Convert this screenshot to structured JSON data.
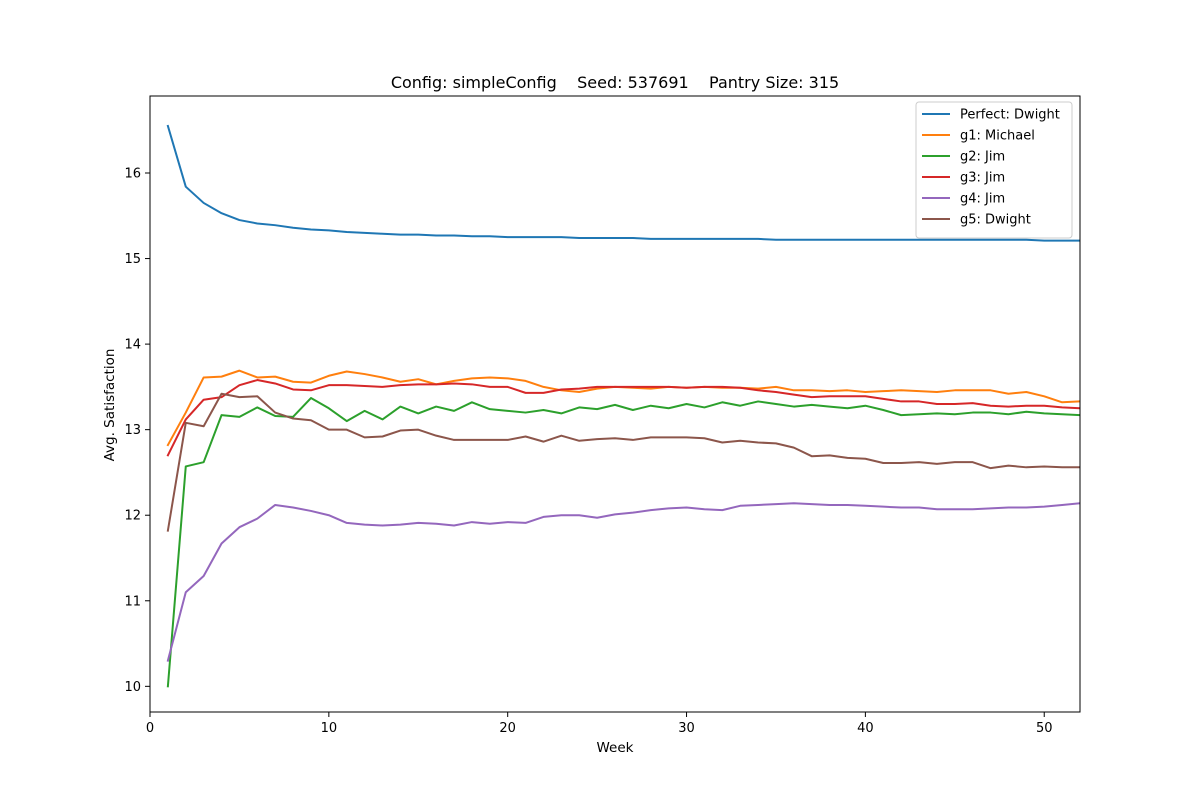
{
  "chart_data": {
    "type": "line",
    "title": "Config: simpleConfig    Seed: 537691    Pantry Size: 315",
    "xlabel": "Week",
    "ylabel": "Avg. Satisfaction",
    "xlim": [
      0,
      52
    ],
    "ylim": [
      9.7,
      16.9
    ],
    "xticks": [
      0,
      10,
      20,
      30,
      40,
      50
    ],
    "yticks": [
      10,
      11,
      12,
      13,
      14,
      15,
      16
    ],
    "grid": false,
    "legend_position": "top-right",
    "x": [
      1,
      2,
      3,
      4,
      5,
      6,
      7,
      8,
      9,
      10,
      11,
      12,
      13,
      14,
      15,
      16,
      17,
      18,
      19,
      20,
      21,
      22,
      23,
      24,
      25,
      26,
      27,
      28,
      29,
      30,
      31,
      32,
      33,
      34,
      35,
      36,
      37,
      38,
      39,
      40,
      41,
      42,
      43,
      44,
      45,
      46,
      47,
      48,
      49,
      50,
      51,
      52
    ],
    "series": [
      {
        "name": "Perfect: Dwight",
        "color": "#1f77b4",
        "values": [
          16.55,
          15.84,
          15.65,
          15.53,
          15.45,
          15.41,
          15.39,
          15.36,
          15.34,
          15.33,
          15.31,
          15.3,
          15.29,
          15.28,
          15.28,
          15.27,
          15.27,
          15.26,
          15.26,
          15.25,
          15.25,
          15.25,
          15.25,
          15.24,
          15.24,
          15.24,
          15.24,
          15.23,
          15.23,
          15.23,
          15.23,
          15.23,
          15.23,
          15.23,
          15.22,
          15.22,
          15.22,
          15.22,
          15.22,
          15.22,
          15.22,
          15.22,
          15.22,
          15.22,
          15.22,
          15.22,
          15.22,
          15.22,
          15.22,
          15.21,
          15.21,
          15.21
        ]
      },
      {
        "name": "g1: Michael",
        "color": "#ff7f0e",
        "values": [
          12.82,
          13.2,
          13.61,
          13.62,
          13.69,
          13.61,
          13.62,
          13.56,
          13.55,
          13.63,
          13.68,
          13.65,
          13.61,
          13.56,
          13.59,
          13.53,
          13.57,
          13.6,
          13.61,
          13.6,
          13.57,
          13.5,
          13.46,
          13.44,
          13.48,
          13.5,
          13.49,
          13.48,
          13.5,
          13.49,
          13.5,
          13.49,
          13.49,
          13.48,
          13.5,
          13.46,
          13.46,
          13.45,
          13.46,
          13.44,
          13.45,
          13.46,
          13.45,
          13.44,
          13.46,
          13.46,
          13.46,
          13.42,
          13.44,
          13.39,
          13.32,
          13.33
        ]
      },
      {
        "name": "g2: Jim",
        "color": "#2ca02c",
        "values": [
          10.0,
          12.57,
          12.62,
          13.17,
          13.15,
          13.26,
          13.16,
          13.15,
          13.37,
          13.25,
          13.1,
          13.22,
          13.12,
          13.27,
          13.19,
          13.27,
          13.22,
          13.32,
          13.24,
          13.22,
          13.2,
          13.23,
          13.19,
          13.26,
          13.24,
          13.29,
          13.23,
          13.28,
          13.25,
          13.3,
          13.26,
          13.32,
          13.28,
          13.33,
          13.3,
          13.27,
          13.29,
          13.27,
          13.25,
          13.28,
          13.23,
          13.17,
          13.18,
          13.19,
          13.18,
          13.2,
          13.2,
          13.18,
          13.21,
          13.19,
          13.18,
          13.17
        ]
      },
      {
        "name": "g3: Jim",
        "color": "#d62728",
        "values": [
          12.7,
          13.12,
          13.35,
          13.38,
          13.52,
          13.58,
          13.54,
          13.47,
          13.46,
          13.52,
          13.52,
          13.51,
          13.5,
          13.52,
          13.53,
          13.53,
          13.54,
          13.53,
          13.5,
          13.5,
          13.43,
          13.43,
          13.47,
          13.48,
          13.5,
          13.5,
          13.5,
          13.5,
          13.5,
          13.49,
          13.5,
          13.5,
          13.49,
          13.46,
          13.44,
          13.41,
          13.38,
          13.39,
          13.39,
          13.39,
          13.36,
          13.33,
          13.33,
          13.3,
          13.3,
          13.31,
          13.28,
          13.27,
          13.28,
          13.28,
          13.26,
          13.25
        ]
      },
      {
        "name": "g4: Jim",
        "color": "#9467bd",
        "values": [
          10.3,
          11.1,
          11.29,
          11.67,
          11.86,
          11.96,
          12.12,
          12.09,
          12.05,
          12.0,
          11.91,
          11.89,
          11.88,
          11.89,
          11.91,
          11.9,
          11.88,
          11.92,
          11.9,
          11.92,
          11.91,
          11.98,
          12.0,
          12.0,
          11.97,
          12.01,
          12.03,
          12.06,
          12.08,
          12.09,
          12.07,
          12.06,
          12.11,
          12.12,
          12.13,
          12.14,
          12.13,
          12.12,
          12.12,
          12.11,
          12.1,
          12.09,
          12.09,
          12.07,
          12.07,
          12.07,
          12.08,
          12.09,
          12.09,
          12.1,
          12.12,
          12.14
        ]
      },
      {
        "name": "g5: Dwight",
        "color": "#8c564b",
        "values": [
          11.82,
          13.08,
          13.04,
          13.42,
          13.38,
          13.39,
          13.2,
          13.13,
          13.11,
          13.0,
          13.0,
          12.91,
          12.92,
          12.99,
          13.0,
          12.93,
          12.88,
          12.88,
          12.88,
          12.88,
          12.92,
          12.86,
          12.93,
          12.87,
          12.89,
          12.9,
          12.88,
          12.91,
          12.91,
          12.91,
          12.9,
          12.85,
          12.87,
          12.85,
          12.84,
          12.79,
          12.69,
          12.7,
          12.67,
          12.66,
          12.61,
          12.61,
          12.62,
          12.6,
          12.62,
          12.62,
          12.55,
          12.58,
          12.56,
          12.57,
          12.56,
          12.56
        ]
      }
    ]
  }
}
